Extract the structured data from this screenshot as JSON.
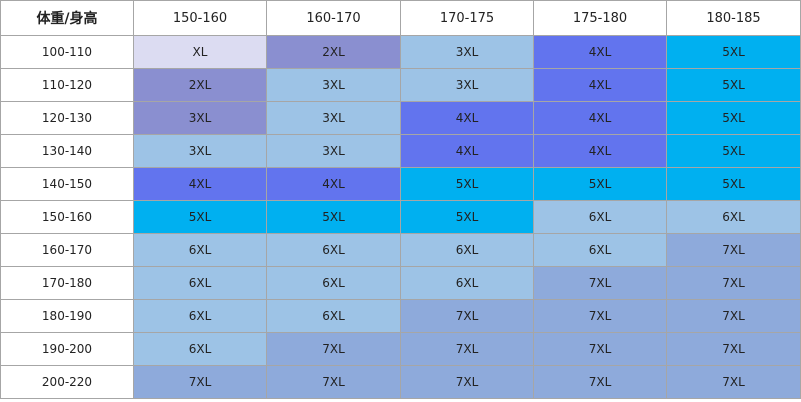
{
  "table": {
    "header": [
      "体重/身高",
      "150-160",
      "160-170",
      "170-175",
      "175-180",
      "180-185"
    ],
    "rows": [
      [
        "100-110",
        "XL",
        "2XL",
        "3XL",
        "4XL",
        "5XL"
      ],
      [
        "110-120",
        "2XL",
        "3XL",
        "3XL",
        "4XL",
        "5XL"
      ],
      [
        "120-130",
        "3XL",
        "3XL",
        "4XL",
        "4XL",
        "5XL"
      ],
      [
        "130-140",
        "3XL",
        "3XL",
        "4XL",
        "4XL",
        "5XL"
      ],
      [
        "140-150",
        "4XL",
        "4XL",
        "5XL",
        "5XL",
        "5XL"
      ],
      [
        "150-160",
        "5XL",
        "5XL",
        "5XL",
        "6XL",
        "6XL"
      ],
      [
        "160-170",
        "6XL",
        "6XL",
        "6XL",
        "6XL",
        "7XL"
      ],
      [
        "170-180",
        "6XL",
        "6XL",
        "6XL",
        "7XL",
        "7XL"
      ],
      [
        "180-190",
        "6XL",
        "6XL",
        "7XL",
        "7XL",
        "7XL"
      ],
      [
        "190-200",
        "6XL",
        "7XL",
        "7XL",
        "7XL",
        "7XL"
      ],
      [
        "200-220",
        "7XL",
        "7XL",
        "7XL",
        "7XL",
        "7XL"
      ]
    ],
    "colors": [
      [
        "#dcdcf2",
        "#8a8fd0",
        "#9dc3e6",
        "#6274ee",
        "#00b0f0"
      ],
      [
        "#8a8fd0",
        "#9dc3e6",
        "#9dc3e6",
        "#6274ee",
        "#00b0f0"
      ],
      [
        "#8a8fd0",
        "#9dc3e6",
        "#6274ee",
        "#6274ee",
        "#00b0f0"
      ],
      [
        "#9dc3e6",
        "#9dc3e6",
        "#6274ee",
        "#6274ee",
        "#00b0f0"
      ],
      [
        "#6274ee",
        "#6274ee",
        "#00b0f0",
        "#00b0f0",
        "#00b0f0"
      ],
      [
        "#00b0f0",
        "#00b0f0",
        "#00b0f0",
        "#9dc3e6",
        "#9dc3e6"
      ],
      [
        "#9dc3e6",
        "#9dc3e6",
        "#9dc3e6",
        "#9dc3e6",
        "#8eaadb"
      ],
      [
        "#9dc3e6",
        "#9dc3e6",
        "#9dc3e6",
        "#8eaadb",
        "#8eaadb"
      ],
      [
        "#9dc3e6",
        "#9dc3e6",
        "#8eaadb",
        "#8eaadb",
        "#8eaadb"
      ],
      [
        "#9dc3e6",
        "#8eaadb",
        "#8eaadb",
        "#8eaadb",
        "#8eaadb"
      ],
      [
        "#8eaadb",
        "#8eaadb",
        "#8eaadb",
        "#8eaadb",
        "#8eaadb"
      ]
    ]
  }
}
